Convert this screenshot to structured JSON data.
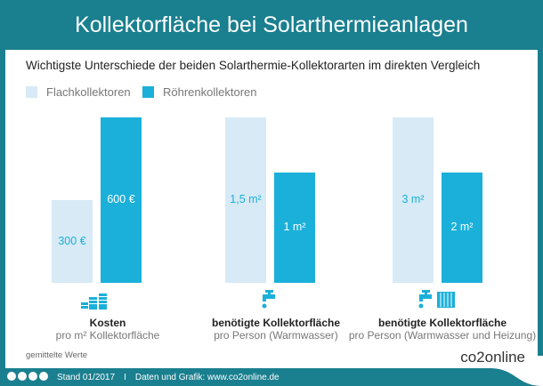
{
  "title": "Kollektorfläche bei Solarthermieanlagen",
  "subtitle": "Wichtigste Unterschiede der beiden Solarthermie-Kollektorarten im direkten Vergleich",
  "note": "gemittelte Werte",
  "footer": {
    "stand": "Stand 01/2017",
    "separator": "I",
    "credit": "Daten und Grafik: www.co2online.de",
    "brand": "co2online"
  },
  "colors": {
    "header": "#1a7f8f",
    "flach": "#d7eaf6",
    "roehren": "#1ab0da"
  },
  "chart_data": {
    "type": "bar",
    "series": [
      {
        "name": "Flachkollektoren",
        "values": [
          300,
          1.5,
          3
        ],
        "labels": [
          "300 €",
          "1,5 m²",
          "3 m²"
        ]
      },
      {
        "name": "Röhrenkollektoren",
        "values": [
          600,
          1,
          2
        ],
        "labels": [
          "600 €",
          "1 m²",
          "2 m²"
        ]
      }
    ],
    "categories": [
      {
        "title": "Kosten",
        "sub": "pro m² Kollektorfläche",
        "unit": "€",
        "icon": "money-stack-icon"
      },
      {
        "title": "benötigte Kollektorfläche",
        "sub": "pro Person (Warmwasser)",
        "unit": "m²",
        "icon": "water-tap-icon"
      },
      {
        "title": "benötigte Kollektorfläche",
        "sub": "pro Person (Warmwasser und Heizung)",
        "unit": "m²",
        "icon": "tap-and-radiator-icon"
      }
    ],
    "legend": "top-left",
    "grid": false
  }
}
